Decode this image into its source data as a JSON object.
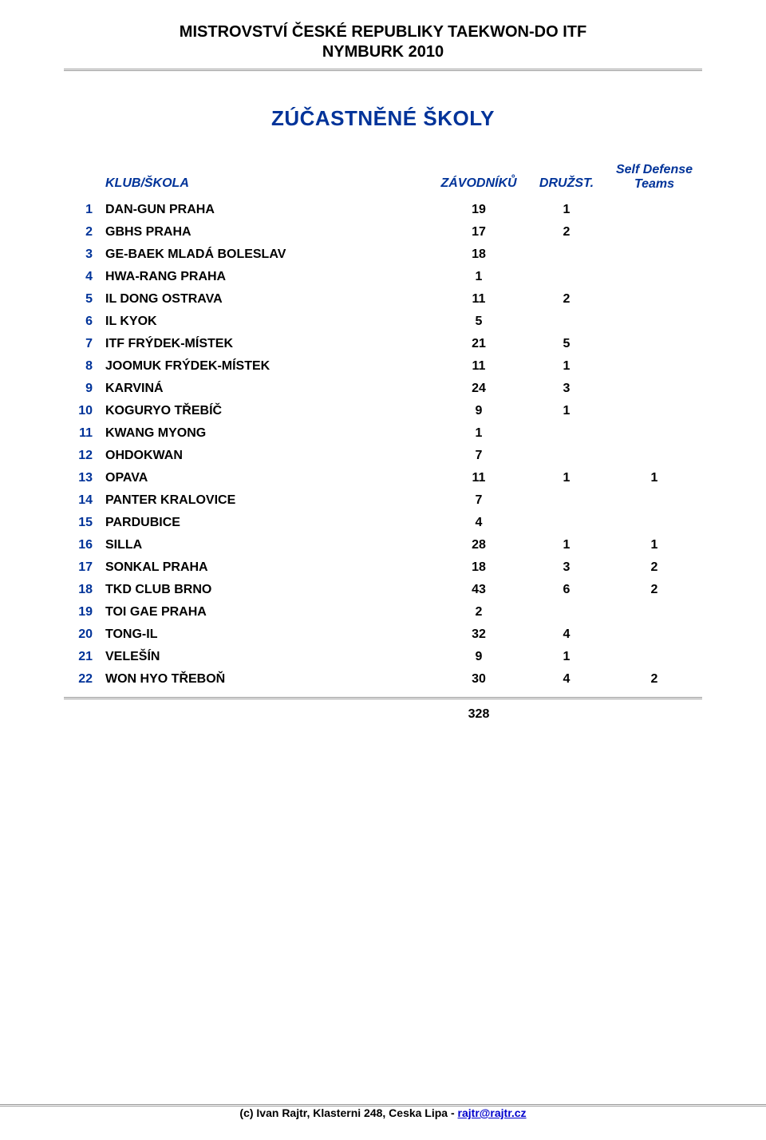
{
  "header": {
    "line1": "MISTROVSTVÍ ČESKÉ REPUBLIKY TAEKWON-DO ITF",
    "line2": "NYMBURK 2010"
  },
  "section_title": "ZÚČASTNĚNÉ ŠKOLY",
  "columns": {
    "name": "KLUB/ŠKOLA",
    "z": "ZÁVODNÍKŮ",
    "d": "DRUŽST.",
    "s_line1": "Self Defense",
    "s_line2": "Teams"
  },
  "rows": [
    {
      "n": "1",
      "name": "DAN-GUN PRAHA",
      "z": "19",
      "d": "1",
      "s": ""
    },
    {
      "n": "2",
      "name": "GBHS PRAHA",
      "z": "17",
      "d": "2",
      "s": ""
    },
    {
      "n": "3",
      "name": "GE-BAEK MLADÁ BOLESLAV",
      "z": "18",
      "d": "",
      "s": ""
    },
    {
      "n": "4",
      "name": "HWA-RANG PRAHA",
      "z": "1",
      "d": "",
      "s": ""
    },
    {
      "n": "5",
      "name": "IL DONG OSTRAVA",
      "z": "11",
      "d": "2",
      "s": ""
    },
    {
      "n": "6",
      "name": "IL KYOK",
      "z": "5",
      "d": "",
      "s": ""
    },
    {
      "n": "7",
      "name": "ITF FRÝDEK-MÍSTEK",
      "z": "21",
      "d": "5",
      "s": ""
    },
    {
      "n": "8",
      "name": "JOOMUK FRÝDEK-MÍSTEK",
      "z": "11",
      "d": "1",
      "s": ""
    },
    {
      "n": "9",
      "name": "KARVINÁ",
      "z": "24",
      "d": "3",
      "s": ""
    },
    {
      "n": "10",
      "name": "KOGURYO TŘEBÍČ",
      "z": "9",
      "d": "1",
      "s": ""
    },
    {
      "n": "11",
      "name": "KWANG MYONG",
      "z": "1",
      "d": "",
      "s": ""
    },
    {
      "n": "12",
      "name": "OHDOKWAN",
      "z": "7",
      "d": "",
      "s": ""
    },
    {
      "n": "13",
      "name": "OPAVA",
      "z": "11",
      "d": "1",
      "s": "1"
    },
    {
      "n": "14",
      "name": "PANTER KRALOVICE",
      "z": "7",
      "d": "",
      "s": ""
    },
    {
      "n": "15",
      "name": "PARDUBICE",
      "z": "4",
      "d": "",
      "s": ""
    },
    {
      "n": "16",
      "name": "SILLA",
      "z": "28",
      "d": "1",
      "s": "1"
    },
    {
      "n": "17",
      "name": "SONKAL PRAHA",
      "z": "18",
      "d": "3",
      "s": "2"
    },
    {
      "n": "18",
      "name": "TKD CLUB BRNO",
      "z": "43",
      "d": "6",
      "s": "2"
    },
    {
      "n": "19",
      "name": "TOI GAE PRAHA",
      "z": "2",
      "d": "",
      "s": ""
    },
    {
      "n": "20",
      "name": "TONG-IL",
      "z": "32",
      "d": "4",
      "s": ""
    },
    {
      "n": "21",
      "name": "VELEŠÍN",
      "z": "9",
      "d": "1",
      "s": ""
    },
    {
      "n": "22",
      "name": "WON HYO TŘEBOŇ",
      "z": "30",
      "d": "4",
      "s": "2"
    }
  ],
  "total_z": "328",
  "footer": {
    "prefix": "(c) Ivan Rajtr, Klasterni 248, Ceska Lipa - ",
    "link_text": "rajtr@rajtr.cz"
  },
  "colors": {
    "navy": "#003399",
    "rule": "#999999",
    "link": "#0000cc",
    "text": "#000000",
    "bg": "#ffffff"
  }
}
